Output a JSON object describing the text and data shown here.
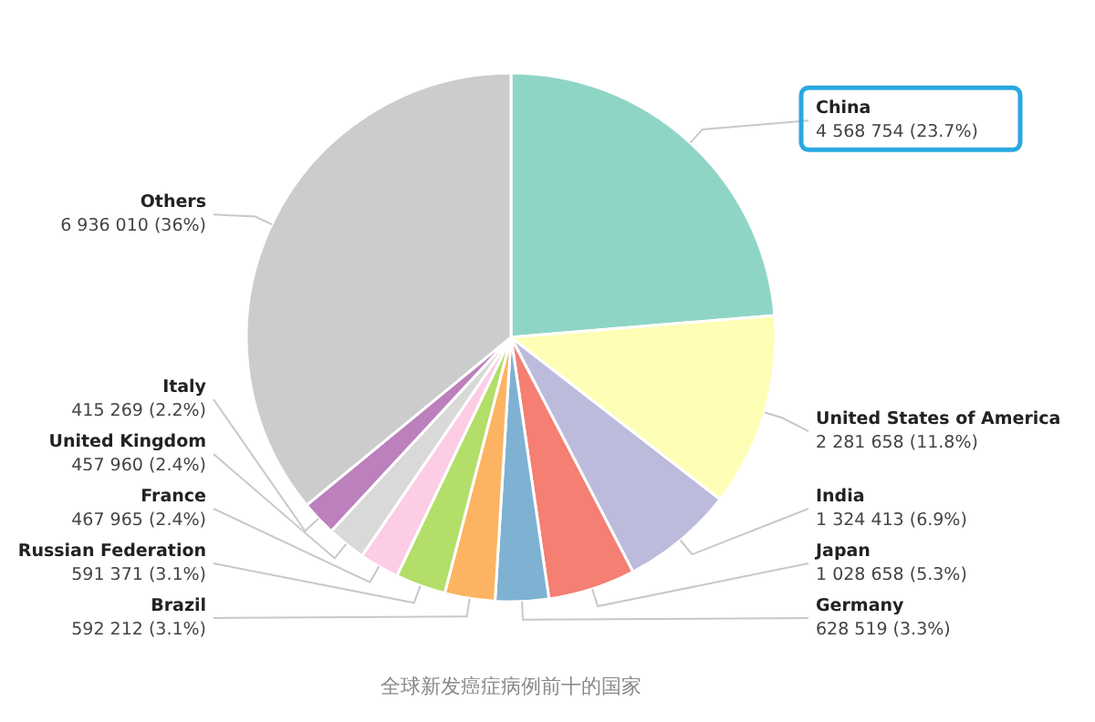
{
  "chart_data": {
    "type": "pie",
    "categories": [
      "China",
      "United States of America",
      "India",
      "Japan",
      "Germany",
      "Brazil",
      "Russian Federation",
      "France",
      "United Kingdom",
      "Italy",
      "Others"
    ],
    "values": [
      4568754,
      2281658,
      1324413,
      1028658,
      628519,
      592212,
      591371,
      467965,
      457960,
      415269,
      6936010
    ],
    "value_labels": [
      "4 568 754 (23.7%)",
      "2 281 658 (11.8%)",
      "1 324 413 (6.9%)",
      "1 028 658 (5.3%)",
      "628 519 (3.3%)",
      "592 212 (3.1%)",
      "591 371 (3.1%)",
      "467 965 (2.4%)",
      "457 960 (2.4%)",
      "415 269 (2.2%)",
      "6 936 010 (36%)"
    ],
    "colors": [
      "#8fd5c6",
      "#fefeb6",
      "#bdbbdc",
      "#f47f72",
      "#7fb1d3",
      "#fcb462",
      "#b3de69",
      "#fccde5",
      "#d9d9d9",
      "#bc80bd",
      "#cccccc"
    ],
    "annotations": [
      "全球新发癌症病例前十的国家"
    ]
  }
}
